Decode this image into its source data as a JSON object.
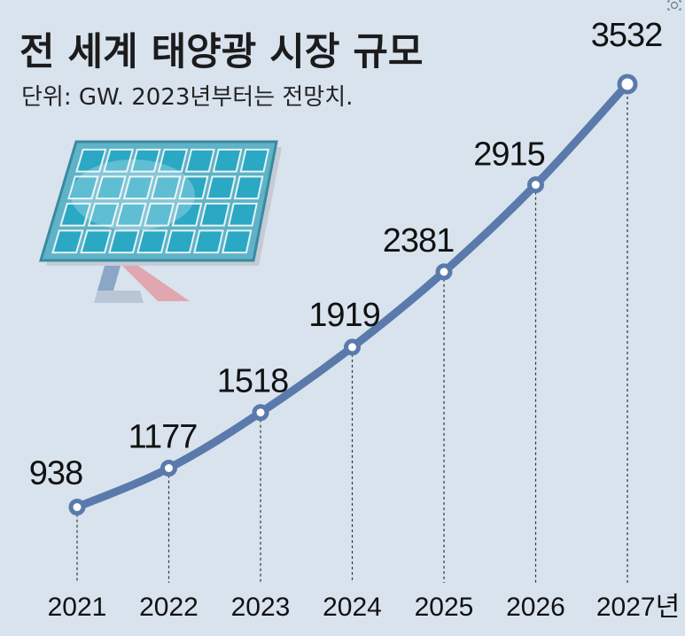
{
  "title": "전 세계 태양광 시장 규모",
  "subtitle": "단위: GW. 2023년부터는 전망치.",
  "chart_data": {
    "type": "line",
    "title": "전 세계 태양광 시장 규모",
    "subtitle": "단위: GW. 2023년부터는 전망치.",
    "x_unit_suffix": "년",
    "categories": [
      "2021",
      "2022",
      "2023",
      "2024",
      "2025",
      "2026",
      "2027"
    ],
    "series": [
      {
        "values": [
          938,
          1177,
          1518,
          1919,
          2381,
          2915,
          3532
        ]
      }
    ],
    "data_labels": [
      "938",
      "1177",
      "1518",
      "1919",
      "2381",
      "2915",
      "3532"
    ],
    "grid": false,
    "legend": "none",
    "colors": {
      "line": "#5a7aab",
      "marker_fill": "#ffffff",
      "background": "#d8e3ee"
    }
  },
  "illustration": {
    "icon": "solar-panel-icon"
  }
}
